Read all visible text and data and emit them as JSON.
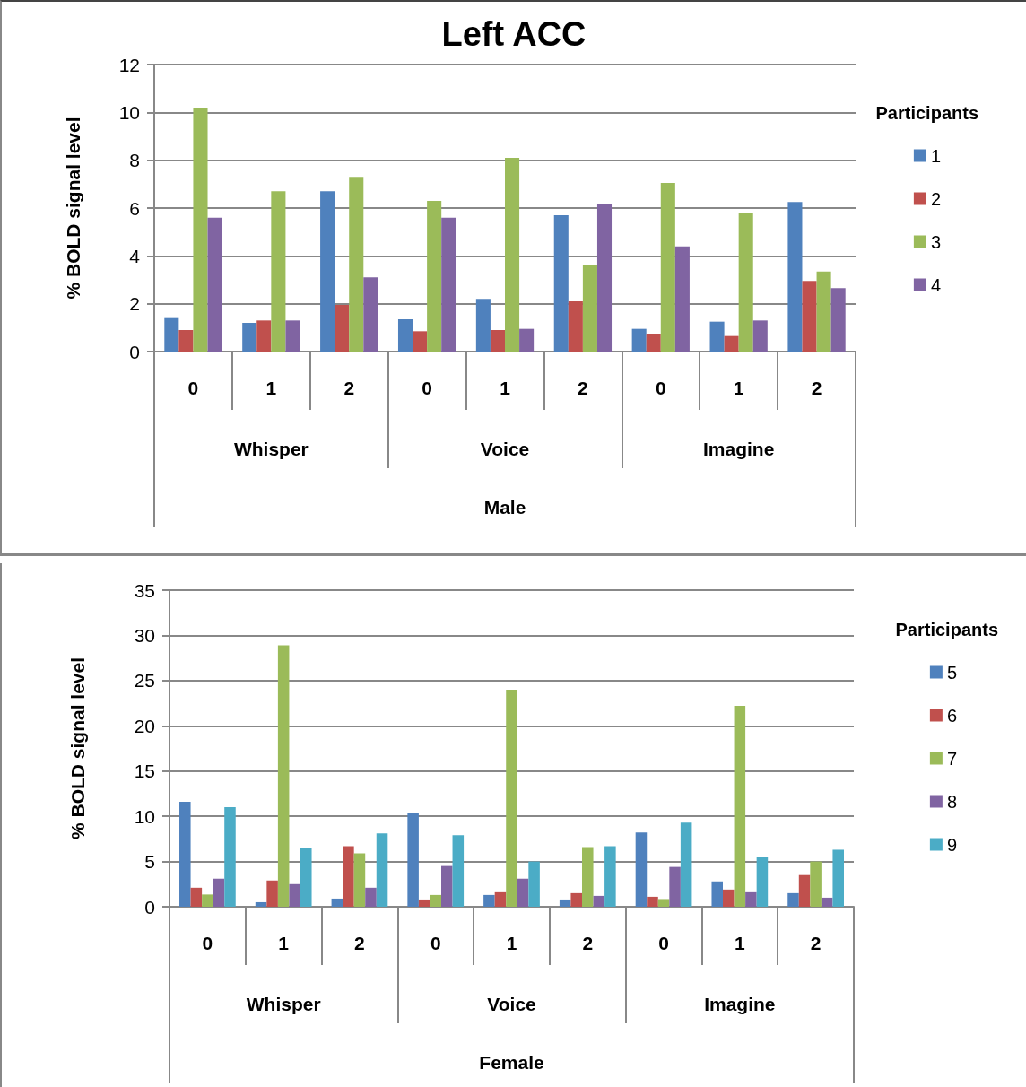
{
  "chart_data": [
    {
      "type": "bar",
      "title": "Left ACC",
      "ylabel": "% BOLD signal level",
      "xlabel": "Male",
      "legend_title": "Participants",
      "legend": "right",
      "grid": "y",
      "categories": [
        "0",
        "1",
        "2",
        "0",
        "1",
        "2",
        "0",
        "1",
        "2"
      ],
      "annotations": [
        "Whisper",
        "Voice",
        "Imagine"
      ],
      "ylim": [
        0,
        12
      ],
      "yticks": [
        0,
        2,
        4,
        6,
        8,
        10,
        12
      ],
      "series": [
        {
          "name": "1",
          "color": "#4f81bd",
          "values": [
            1.4,
            1.2,
            6.7,
            1.35,
            2.2,
            5.7,
            0.95,
            1.25,
            6.25
          ]
        },
        {
          "name": "2",
          "color": "#c0504d",
          "values": [
            0.9,
            1.3,
            1.95,
            0.85,
            0.9,
            2.1,
            0.75,
            0.65,
            2.95
          ]
        },
        {
          "name": "3",
          "color": "#9bbb59",
          "values": [
            10.2,
            6.7,
            7.3,
            6.3,
            8.1,
            3.6,
            7.05,
            5.8,
            3.35
          ]
        },
        {
          "name": "4",
          "color": "#8064a2",
          "values": [
            5.6,
            1.3,
            3.1,
            5.6,
            0.95,
            6.15,
            4.4,
            1.3,
            2.65
          ]
        }
      ]
    },
    {
      "type": "bar",
      "ylabel": "% BOLD signal level",
      "xlabel": "Female",
      "legend_title": "Participants",
      "legend": "right",
      "grid": "y",
      "categories": [
        "0",
        "1",
        "2",
        "0",
        "1",
        "2",
        "0",
        "1",
        "2"
      ],
      "annotations": [
        "Whisper",
        "Voice",
        "Imagine"
      ],
      "ylim": [
        0,
        35
      ],
      "yticks": [
        0,
        5,
        10,
        15,
        20,
        25,
        30,
        35
      ],
      "series": [
        {
          "name": "5",
          "color": "#4f81bd",
          "values": [
            11.6,
            0.5,
            0.9,
            10.4,
            1.3,
            0.8,
            8.2,
            2.8,
            1.5
          ]
        },
        {
          "name": "6",
          "color": "#c0504d",
          "values": [
            2.1,
            2.9,
            6.7,
            0.8,
            1.6,
            1.5,
            1.1,
            1.9,
            3.5
          ]
        },
        {
          "name": "7",
          "color": "#9bbb59",
          "values": [
            1.35,
            28.9,
            5.9,
            1.3,
            24.0,
            6.6,
            0.85,
            22.2,
            5.0
          ]
        },
        {
          "name": "8",
          "color": "#8064a2",
          "values": [
            3.1,
            2.5,
            2.1,
            4.5,
            3.1,
            1.2,
            4.4,
            1.6,
            1.0
          ]
        },
        {
          "name": "9",
          "color": "#4bacc6",
          "values": [
            11.0,
            6.5,
            8.1,
            7.9,
            5.0,
            6.7,
            9.3,
            5.5,
            6.3
          ]
        }
      ]
    }
  ]
}
